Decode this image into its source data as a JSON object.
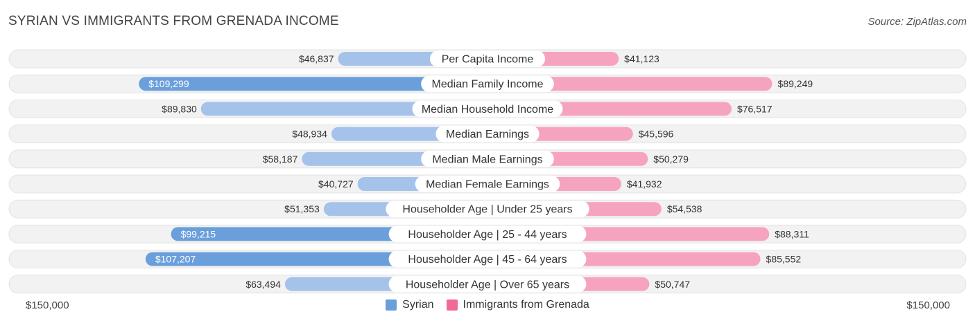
{
  "title": "SYRIAN VS IMMIGRANTS FROM GRENADA INCOME",
  "source": "Source: ZipAtlas.com",
  "axis": {
    "left_label": "$150,000",
    "right_label": "$150,000"
  },
  "colors": {
    "syrian_light": "#a4c2ea",
    "syrian_dark": "#6a9fdc",
    "grenada_light": "#f6a3bf",
    "grenada_dark": "#ef6b95",
    "track": "#eeeeee"
  },
  "chart_data": {
    "type": "bar",
    "orientation": "diverging-horizontal",
    "title": "SYRIAN VS IMMIGRANTS FROM GRENADA INCOME",
    "xlim": [
      0,
      150000
    ],
    "categories": [
      "Per Capita Income",
      "Median Family Income",
      "Median Household Income",
      "Median Earnings",
      "Median Male Earnings",
      "Median Female Earnings",
      "Householder Age | Under 25 years",
      "Householder Age | 25 - 44 years",
      "Householder Age | 45 - 64 years",
      "Householder Age | Over 65 years"
    ],
    "series": [
      {
        "name": "Syrian",
        "side": "left",
        "values": [
          46837,
          109299,
          89830,
          48934,
          58187,
          40727,
          51353,
          99215,
          107207,
          63494
        ],
        "labels": [
          "$46,837",
          "$109,299",
          "$89,830",
          "$48,934",
          "$58,187",
          "$40,727",
          "$51,353",
          "$99,215",
          "$107,207",
          "$63,494"
        ]
      },
      {
        "name": "Immigrants from Grenada",
        "side": "right",
        "values": [
          41123,
          89249,
          76517,
          45596,
          50279,
          41932,
          54538,
          88311,
          85552,
          50747
        ],
        "labels": [
          "$41,123",
          "$89,249",
          "$76,517",
          "$45,596",
          "$50,279",
          "$41,932",
          "$54,538",
          "$88,311",
          "$85,552",
          "$50,747"
        ]
      }
    ],
    "highlight_threshold": 90000,
    "legend": [
      "Syrian",
      "Immigrants from Grenada"
    ],
    "legend_position": "bottom-center"
  }
}
